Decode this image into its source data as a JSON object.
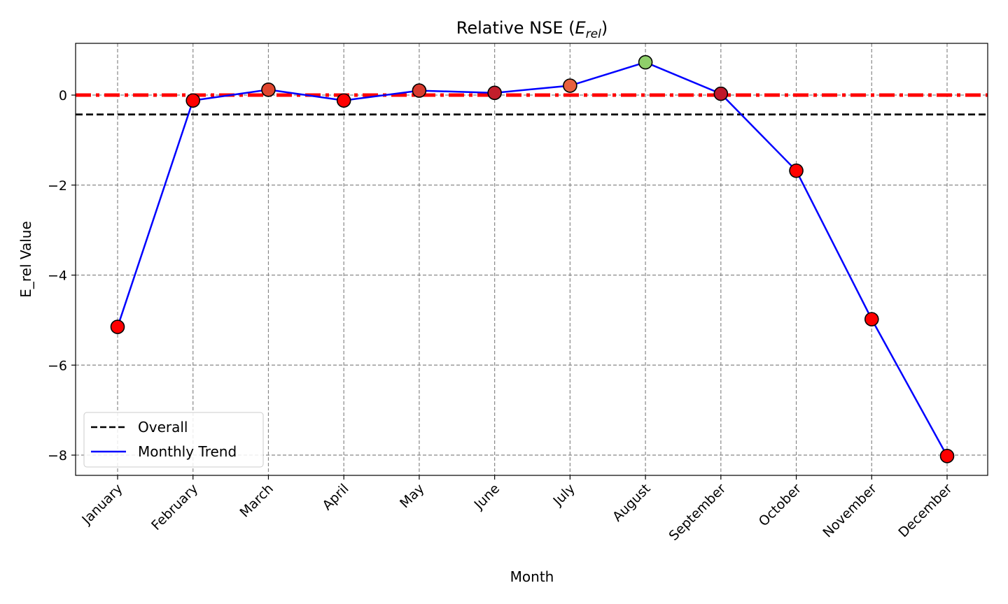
{
  "chart_data": {
    "type": "line",
    "title": "Relative NSE (",
    "title_math": "E",
    "title_sub": "rel",
    "title_close": ")",
    "xlabel": "Month",
    "ylabel": "E_rel Value",
    "categories": [
      "January",
      "February",
      "March",
      "April",
      "May",
      "June",
      "July",
      "August",
      "September",
      "October",
      "November",
      "December"
    ],
    "series": [
      {
        "name": "Monthly Trend",
        "color": "#0000ff",
        "values": [
          -5.15,
          -0.12,
          0.12,
          -0.12,
          0.1,
          0.05,
          0.21,
          0.73,
          0.03,
          -1.68,
          -4.98,
          -8.02
        ],
        "marker_colors": [
          "#ff0000",
          "#ff0000",
          "#e0462f",
          "#ff0000",
          "#d93a2e",
          "#c21f2c",
          "#e8603f",
          "#8fcf6a",
          "#c0172a",
          "#ff0000",
          "#ff0000",
          "#ff0000"
        ]
      }
    ],
    "reference_lines": [
      {
        "name": "Overall",
        "value": -0.43,
        "style": "dashed",
        "color": "#000000"
      },
      {
        "name": "",
        "value": 0,
        "style": "dashdot",
        "color": "#ff0000"
      }
    ],
    "ylim": [
      -8.45,
      1.15
    ],
    "yticks": [
      0,
      -2,
      -4,
      -6,
      -8
    ],
    "ytick_labels": [
      "0",
      "−2",
      "−4",
      "−6",
      "−8"
    ],
    "grid": true,
    "legend": {
      "placement": "lower-left",
      "entries": [
        {
          "label": "Overall",
          "style": "dashed",
          "color": "#000000"
        },
        {
          "label": "Monthly Trend",
          "style": "solid",
          "color": "#0000ff"
        }
      ]
    }
  }
}
